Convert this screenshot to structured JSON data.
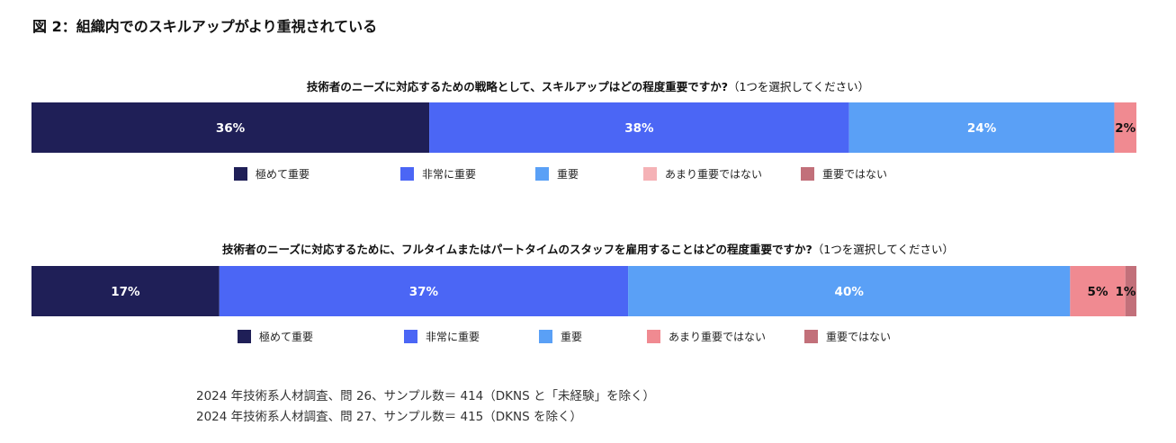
{
  "figure_title": "図 2：組織内でのスキルアップがより重視されている",
  "colors": {
    "極めて重要": "#1f1f57",
    "非常に重要": "#4b66f5",
    "重要": "#5aa0f6",
    "あまり重要ではない": "#f08a91",
    "重要ではない": "#c2707a"
  },
  "chart_data": [
    {
      "type": "bar",
      "orientation": "horizontal-stacked",
      "title": "技術者のニーズに対応するための戦略として、スキルアップはどの程度重要ですか?",
      "subtitle": "（1つを選択してください）",
      "series": [
        {
          "name": "極めて重要",
          "values": [
            36
          ],
          "label": "36%"
        },
        {
          "name": "非常に重要",
          "values": [
            38
          ],
          "label": "38%"
        },
        {
          "name": "重要",
          "values": [
            24
          ],
          "label": "24%"
        },
        {
          "name": "あまり重要ではない",
          "values": [
            2
          ],
          "label": "2%"
        },
        {
          "name": "重要ではない",
          "values": [
            0
          ],
          "label": ""
        }
      ],
      "xlim": [
        0,
        100
      ],
      "legend_position": "bottom"
    },
    {
      "type": "bar",
      "orientation": "horizontal-stacked",
      "title": "技術者のニーズに対応するために、フルタイムまたはパートタイムのスタッフを雇用することはどの程度重要ですか?",
      "subtitle": "（1つを選択してください）",
      "series": [
        {
          "name": "極めて重要",
          "values": [
            17
          ],
          "label": "17%"
        },
        {
          "name": "非常に重要",
          "values": [
            37
          ],
          "label": "37%"
        },
        {
          "name": "重要",
          "values": [
            40
          ],
          "label": "40%"
        },
        {
          "name": "あまり重要ではない",
          "values": [
            5
          ],
          "label": "5%"
        },
        {
          "name": "重要ではない",
          "values": [
            1
          ],
          "label": "1%"
        }
      ],
      "xlim": [
        0,
        100
      ],
      "legend_position": "bottom"
    }
  ],
  "notes": [
    "2024 年技術系人材調査、問 26、サンプル数＝ 414（DKNS と「未経験」を除く）",
    "2024 年技術系人材調査、問 27、サンプル数＝ 415（DKNS を除く）"
  ]
}
